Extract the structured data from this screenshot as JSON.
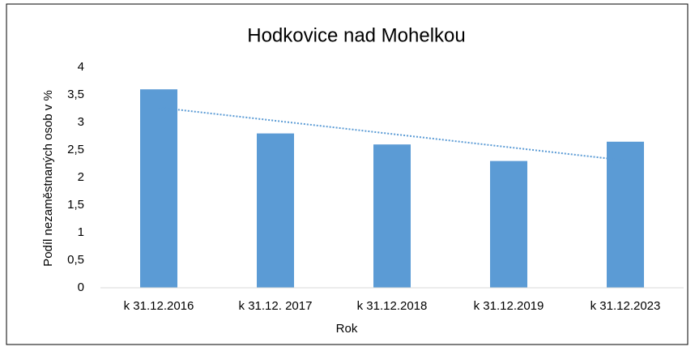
{
  "chart_data": {
    "type": "bar",
    "title": "Hodkovice nad Mohelkou",
    "x_label": "Rok",
    "y_label": "Podíl nezaměstnaných osob v %",
    "categories": [
      "k 31.12.2016",
      "k 31.12. 2017",
      "k 31.12.2018",
      "k 31.12.2019",
      "k 31.12.2023"
    ],
    "values": [
      3.6,
      2.8,
      2.6,
      2.3,
      2.65
    ],
    "color": "#5b9bd5",
    "ylim": [
      0,
      4
    ],
    "yticks": [
      0,
      {
        "value": 0.5,
        "label": "0,5"
      },
      1,
      {
        "value": 1.5,
        "label": "1,5"
      },
      2,
      {
        "value": 2.5,
        "label": "2,5"
      },
      3,
      {
        "value": 3.5,
        "label": "3,5"
      },
      4
    ],
    "grid": false,
    "trendline": {
      "type": "linear",
      "color": "#5b9bd5"
    }
  }
}
